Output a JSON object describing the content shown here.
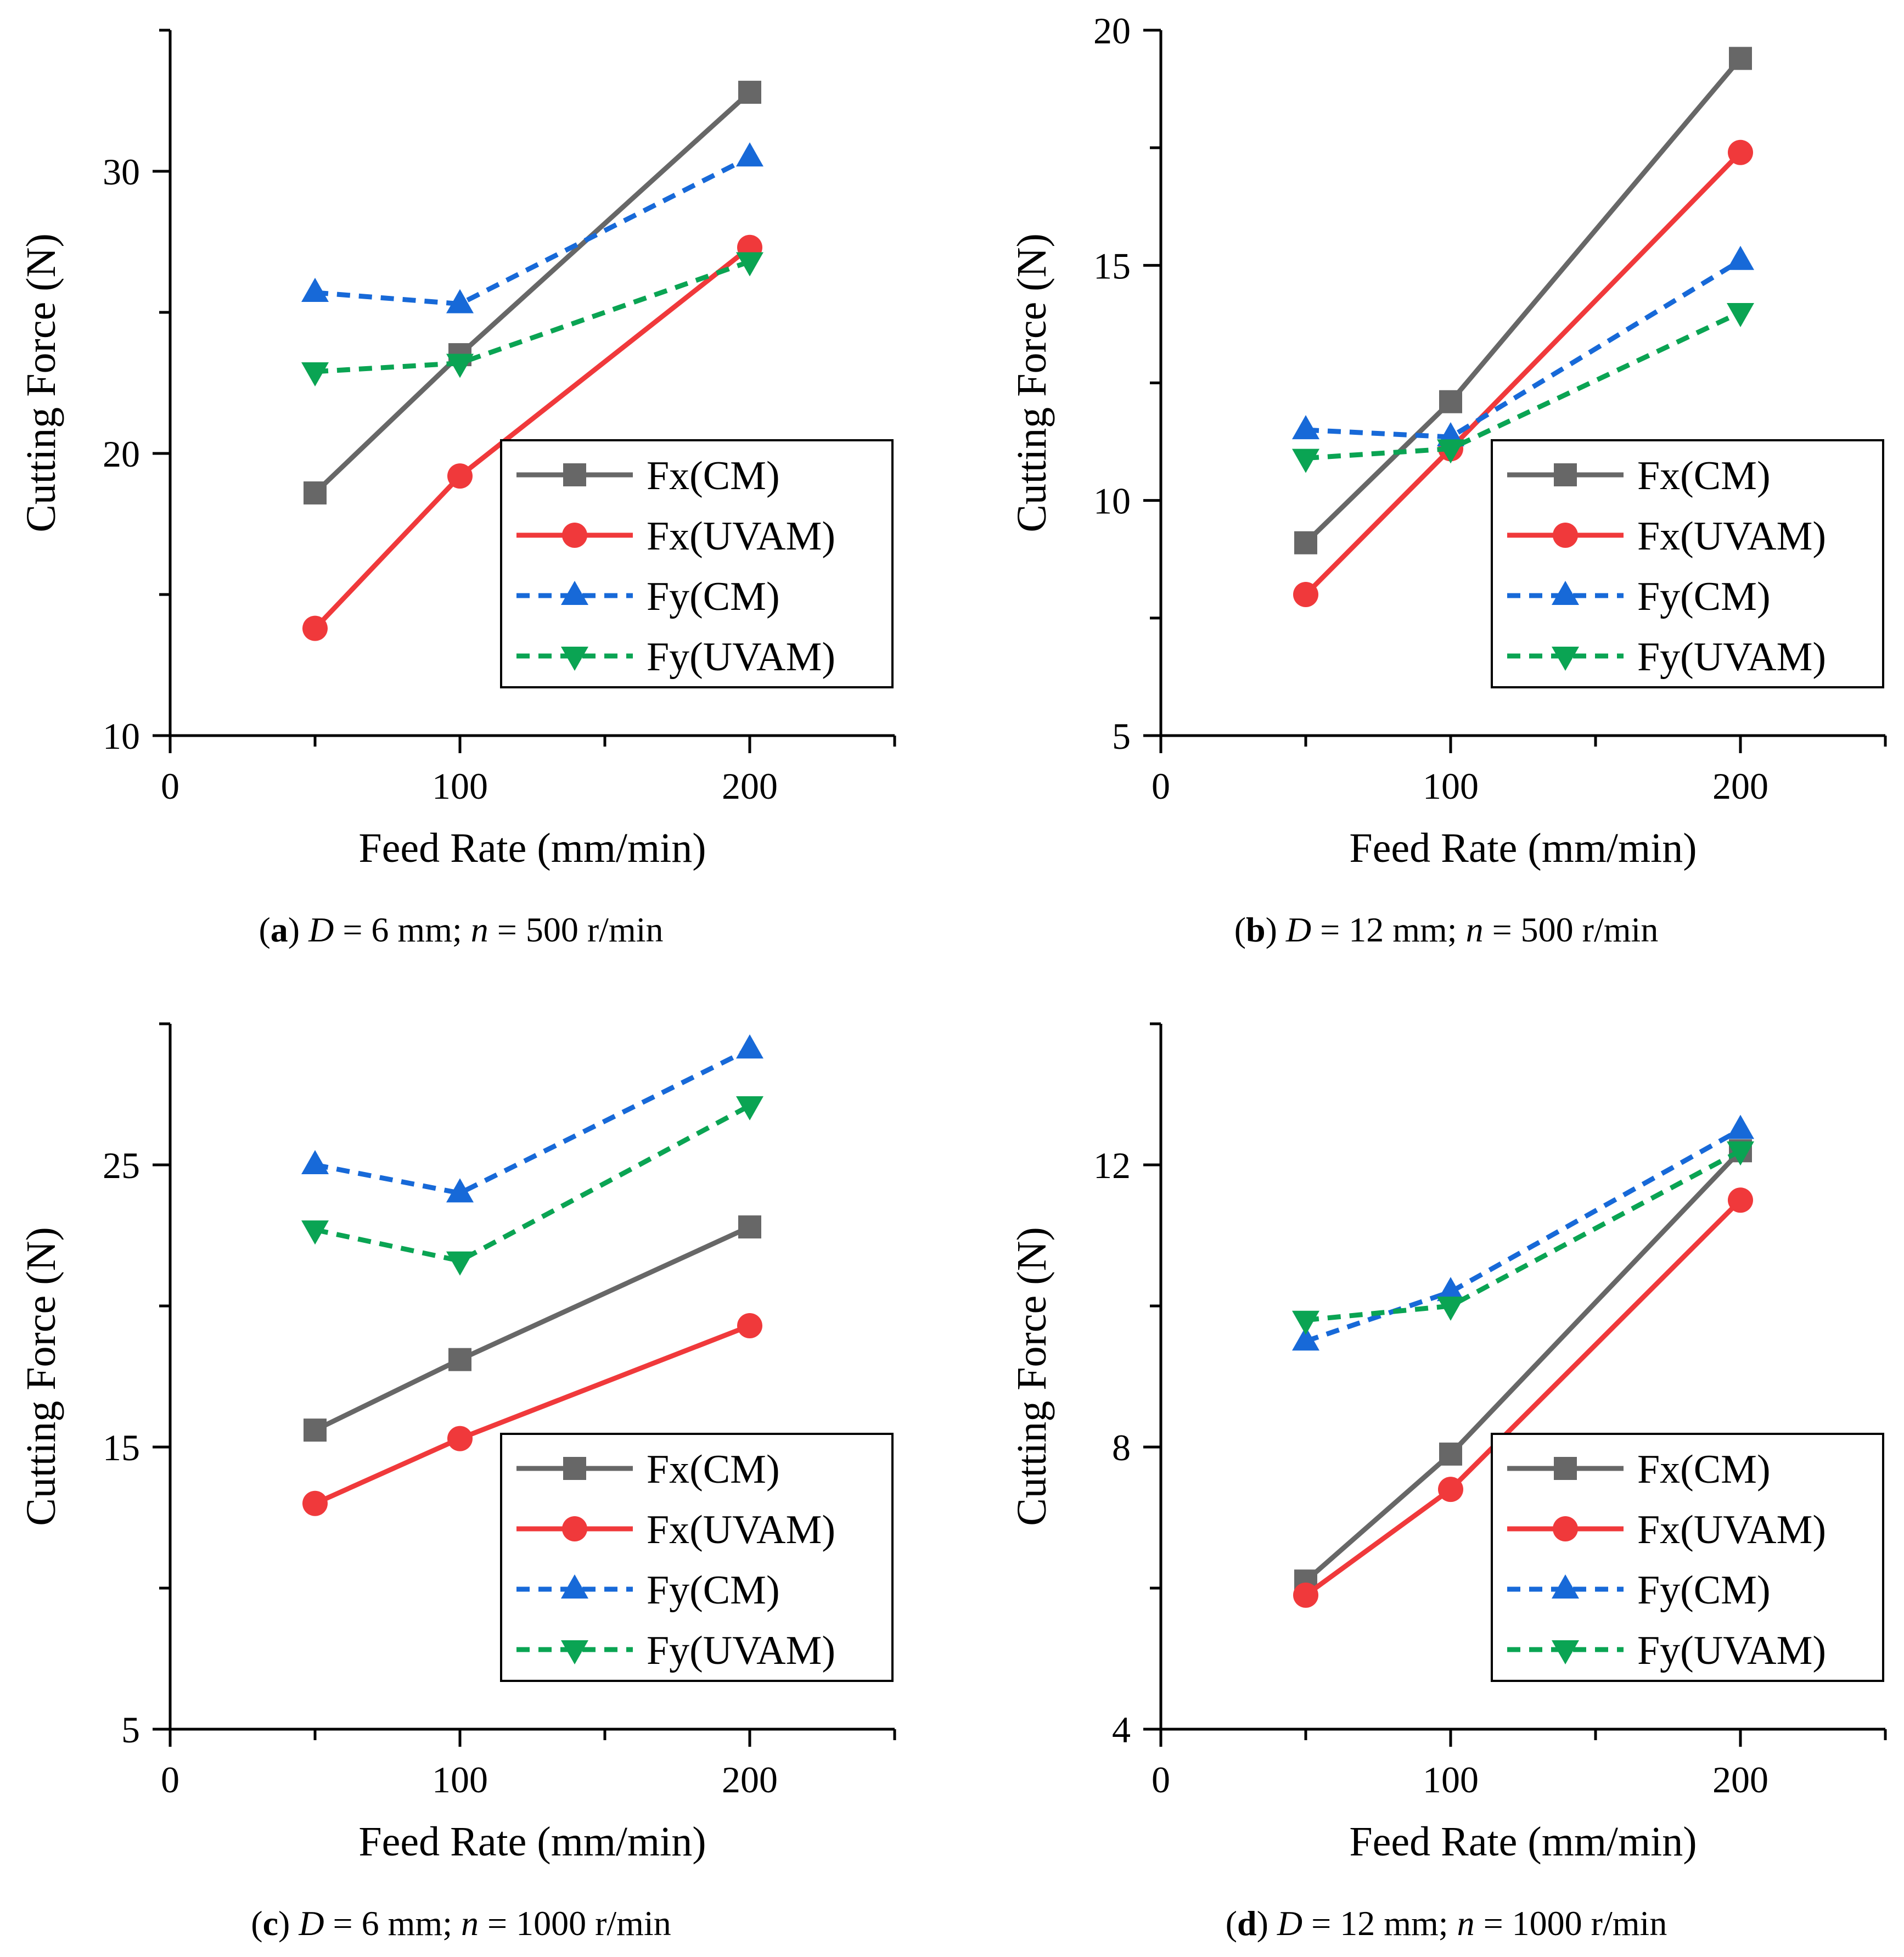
{
  "figure": {
    "series_styles": [
      {
        "name": "Fx(CM)",
        "color": "#676767",
        "marker": "square",
        "dash": "solid"
      },
      {
        "name": "Fx(UVAM)",
        "color": "#f0393b",
        "marker": "circle",
        "dash": "solid"
      },
      {
        "name": "Fy(CM)",
        "color": "#1769d8",
        "marker": "triangle-up",
        "dash": "dashed"
      },
      {
        "name": "Fy(UVAM)",
        "color": "#0aa453",
        "marker": "triangle-down",
        "dash": "dashed"
      }
    ]
  },
  "chart_data": [
    {
      "id": "a",
      "type": "line",
      "caption": {
        "letter": "a",
        "d_label": "D",
        "d_value": " = 6 mm; ",
        "n_label": "n",
        "n_value": " = 500 r/min"
      },
      "xlabel": "Feed Rate (mm/min)",
      "ylabel": "Cutting Force (N)",
      "xlim": [
        0,
        250
      ],
      "ylim": [
        10,
        35
      ],
      "xticks": [
        0,
        100,
        200
      ],
      "xminor": [
        50,
        150,
        250
      ],
      "yticks": [
        10,
        20,
        30
      ],
      "yminor": [
        15,
        25,
        35
      ],
      "x": [
        50,
        100,
        200
      ],
      "series": [
        {
          "name": "Fx(CM)",
          "values": [
            18.6,
            23.5,
            32.8
          ]
        },
        {
          "name": "Fx(UVAM)",
          "values": [
            13.8,
            19.2,
            27.3
          ]
        },
        {
          "name": "Fy(CM)",
          "values": [
            25.7,
            25.3,
            30.5
          ]
        },
        {
          "name": "Fy(UVAM)",
          "values": [
            22.9,
            23.2,
            26.8
          ]
        }
      ],
      "legend": "lower-right"
    },
    {
      "id": "b",
      "type": "line",
      "caption": {
        "letter": "b",
        "d_label": "D",
        "d_value": " = 12 mm; ",
        "n_label": "n",
        "n_value": " = 500 r/min"
      },
      "xlabel": "Feed Rate (mm/min)",
      "ylabel": "Cutting Force (N)",
      "xlim": [
        0,
        250
      ],
      "ylim": [
        5,
        20
      ],
      "xticks": [
        0,
        100,
        200
      ],
      "xminor": [
        50,
        150,
        250
      ],
      "yticks": [
        5,
        10,
        15,
        20
      ],
      "yminor": [
        7.5,
        12.5,
        17.5
      ],
      "x": [
        50,
        100,
        200
      ],
      "series": [
        {
          "name": "Fx(CM)",
          "values": [
            9.1,
            12.1,
            19.4
          ]
        },
        {
          "name": "Fx(UVAM)",
          "values": [
            8.0,
            11.1,
            17.4
          ]
        },
        {
          "name": "Fy(CM)",
          "values": [
            11.5,
            11.35,
            15.1
          ]
        },
        {
          "name": "Fy(UVAM)",
          "values": [
            10.9,
            11.1,
            14.0
          ]
        }
      ],
      "legend": "lower-right"
    },
    {
      "id": "c",
      "type": "line",
      "caption": {
        "letter": "c",
        "d_label": "D",
        "d_value": " = 6 mm; ",
        "n_label": "n",
        "n_value": " = 1000 r/min"
      },
      "xlabel": "Feed Rate (mm/min)",
      "ylabel": "Cutting Force (N)",
      "xlim": [
        0,
        250
      ],
      "ylim": [
        5,
        30
      ],
      "xticks": [
        0,
        100,
        200
      ],
      "xminor": [
        50,
        150,
        250
      ],
      "yticks": [
        5,
        15,
        25
      ],
      "yminor": [
        10,
        20,
        30
      ],
      "x": [
        50,
        100,
        200
      ],
      "series": [
        {
          "name": "Fx(CM)",
          "values": [
            15.6,
            18.1,
            22.8
          ]
        },
        {
          "name": "Fx(UVAM)",
          "values": [
            13.0,
            15.3,
            19.3
          ]
        },
        {
          "name": "Fy(CM)",
          "values": [
            25.0,
            24.0,
            29.1
          ]
        },
        {
          "name": "Fy(UVAM)",
          "values": [
            22.7,
            21.6,
            27.1
          ]
        }
      ],
      "legend": "lower-right"
    },
    {
      "id": "d",
      "type": "line",
      "caption": {
        "letter": "d",
        "d_label": "D",
        "d_value": " = 12 mm; ",
        "n_label": "n",
        "n_value": " = 1000 r/min"
      },
      "xlabel": "Feed Rate (mm/min)",
      "ylabel": "Cutting Force (N)",
      "xlim": [
        0,
        250
      ],
      "ylim": [
        4,
        14
      ],
      "xticks": [
        0,
        100,
        200
      ],
      "xminor": [
        50,
        150,
        250
      ],
      "yticks": [
        4,
        8,
        12
      ],
      "yminor": [
        6,
        10,
        14
      ],
      "x": [
        50,
        100,
        200
      ],
      "series": [
        {
          "name": "Fx(CM)",
          "values": [
            6.1,
            7.9,
            12.2
          ]
        },
        {
          "name": "Fx(UVAM)",
          "values": [
            5.9,
            7.4,
            11.5
          ]
        },
        {
          "name": "Fy(CM)",
          "values": [
            9.5,
            10.2,
            12.5
          ]
        },
        {
          "name": "Fy(UVAM)",
          "values": [
            9.8,
            10.0,
            12.2
          ]
        }
      ],
      "legend": "lower-right"
    }
  ]
}
